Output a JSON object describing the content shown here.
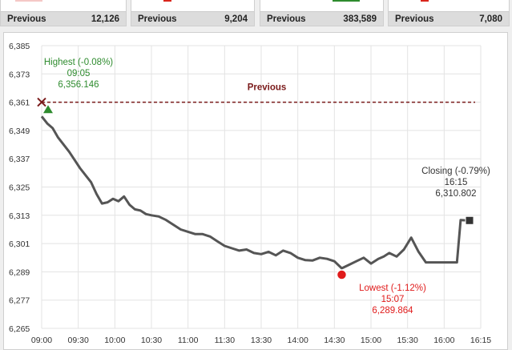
{
  "cards": [
    {
      "label": "Previous",
      "value": "12,126",
      "accent": "#d9251c"
    },
    {
      "label": "Previous",
      "value": "9,204",
      "accent": "#d9251c"
    },
    {
      "label": "Previous",
      "value": "383,589",
      "accent": "#2e8b2e"
    },
    {
      "label": "Previous",
      "value": "7,080",
      "accent": "#d9251c"
    }
  ],
  "chart_data": {
    "type": "line",
    "y_ticks": [
      "6,385",
      "6,373",
      "6,361",
      "6,349",
      "6,337",
      "6,325",
      "6,313",
      "6,301",
      "6,289",
      "6,277",
      "6,265"
    ],
    "x_ticks": [
      "09:00",
      "09:30",
      "10:00",
      "10:30",
      "11:00",
      "11:30",
      "13:30",
      "14:00",
      "14:30",
      "15:00",
      "15:30",
      "16:00",
      "16:15"
    ],
    "ylim": [
      6265,
      6385
    ],
    "grid": true,
    "reference": {
      "label": "Previous",
      "value": 6361,
      "color": "#7a1a1a"
    },
    "highest": {
      "title": "Highest (-0.08%)",
      "time": "09:05",
      "value": "6,356.146",
      "color": "#2e8b2e"
    },
    "lowest": {
      "title": "Lowest (-1.12%)",
      "time": "15:07",
      "value": "6,289.864",
      "color": "#e01b1b"
    },
    "closing": {
      "title": "Closing (-0.79%)",
      "time": "16:15",
      "value": "6,310.802",
      "color": "#333333"
    },
    "series": [
      {
        "color": "#555555",
        "x": [
          0,
          0.15,
          0.3,
          0.45,
          0.6,
          0.75,
          0.9,
          1.05,
          1.2,
          1.35,
          1.5,
          1.65,
          1.8,
          1.95,
          2.1,
          2.25,
          2.4,
          2.55,
          2.7,
          2.85,
          3.0,
          3.2,
          3.4,
          3.6,
          3.8,
          4.0,
          4.2,
          4.4,
          4.6,
          4.8,
          5.0,
          5.2,
          5.4,
          5.6,
          5.8,
          6.0,
          6.2,
          6.4,
          6.6,
          6.8,
          7.0,
          7.2,
          7.4,
          7.6,
          7.8,
          8.0,
          8.2,
          8.4,
          8.6,
          8.8,
          9.0,
          9.2,
          9.35,
          9.5,
          9.7,
          9.9,
          10.1,
          10.3,
          10.5,
          10.7,
          10.85,
          11.0,
          11.35,
          11.45,
          11.65
        ],
        "values": [
          6355.0,
          6352.0,
          6350.0,
          6346.0,
          6343.0,
          6340.0,
          6336.5,
          6333.0,
          6330.0,
          6327.0,
          6322.0,
          6318.0,
          6318.5,
          6320.0,
          6319.0,
          6321.0,
          6317.5,
          6315.5,
          6315.0,
          6313.5,
          6313.0,
          6312.5,
          6311.0,
          6309.0,
          6307.0,
          6306.0,
          6305.0,
          6305.0,
          6304.0,
          6302.0,
          6300.0,
          6299.0,
          6298.0,
          6298.5,
          6297.0,
          6296.5,
          6297.5,
          6296.0,
          6298.0,
          6297.0,
          6295.0,
          6294.0,
          6293.8,
          6295.0,
          6294.5,
          6293.5,
          6290.5,
          6292.0,
          6293.5,
          6295.0,
          6292.5,
          6294.5,
          6295.5,
          6297.0,
          6295.5,
          6298.5,
          6303.5,
          6297.5,
          6293.0,
          6293.0,
          6293.0,
          6293.0,
          6293.0,
          6311.0,
          6310.8
        ]
      }
    ]
  }
}
